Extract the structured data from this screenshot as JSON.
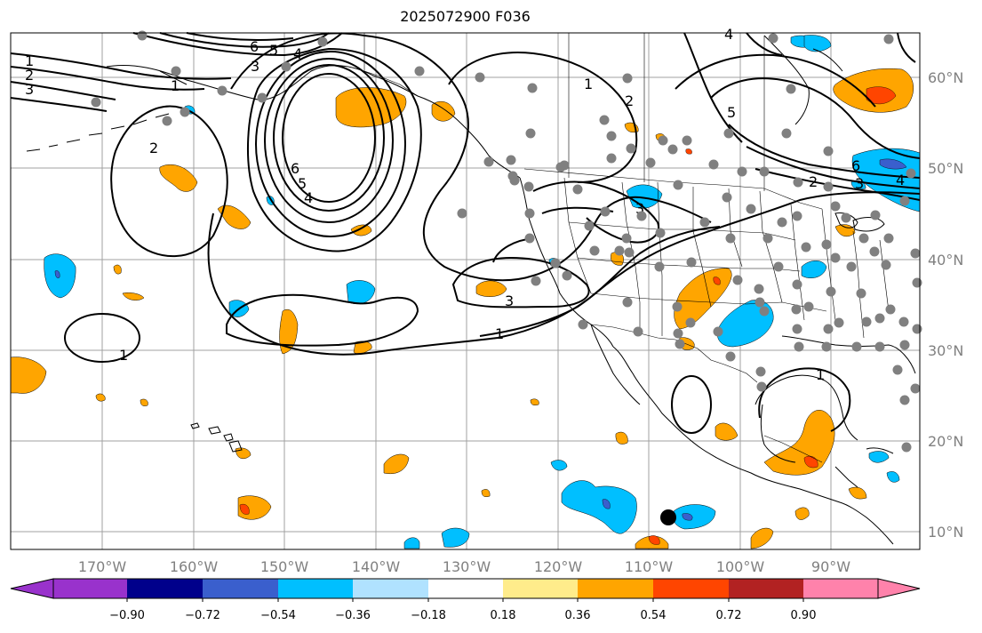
{
  "title": "2025072900 F036",
  "lon_labels": [
    "170°W",
    "160°W",
    "150°W",
    "140°W",
    "130°W",
    "120°W",
    "110°W",
    "100°W",
    "90°W"
  ],
  "lat_labels": [
    "60°N",
    "50°N",
    "40°N",
    "30°N",
    "20°N",
    "10°N"
  ],
  "colorbar": {
    "ticks": [
      "−0.90",
      "−0.72",
      "−0.54",
      "−0.36",
      "−0.18",
      "0.18",
      "0.36",
      "0.54",
      "0.72",
      "0.90"
    ],
    "colors": [
      "#9932cc",
      "#00008b",
      "#3a5fcd",
      "#00bfff",
      "#b0e2ff",
      "#ffffff",
      "#ffec8b",
      "#ffa500",
      "#ff4500",
      "#b22222",
      "#ff82ab"
    ]
  },
  "contour_labels": [
    "6",
    "5",
    "4",
    "3",
    "1",
    "2",
    "3",
    "1",
    "2",
    "6",
    "5",
    "4",
    "3",
    "3",
    "1",
    "1",
    "1",
    "2",
    "5",
    "6",
    "2",
    "3",
    "4",
    "1",
    "4"
  ],
  "colors": {
    "grid": "#a0a0a0",
    "coast": "#000000",
    "station": "#808080",
    "contour": "#000000"
  }
}
